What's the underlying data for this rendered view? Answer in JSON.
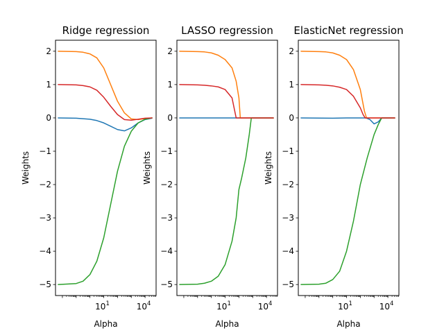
{
  "figure": {
    "background": "#ffffff"
  },
  "chart_data": [
    {
      "type": "line",
      "title": "Ridge regression",
      "xlabel": "Alpha",
      "ylabel": "Weights",
      "xscale": "log",
      "xlim_log10": [
        -2.5,
        4.8
      ],
      "ylim": [
        -5.33,
        2.33
      ],
      "xticks": [
        {
          "base": "10",
          "exp": "1",
          "value": 10
        },
        {
          "base": "10",
          "exp": "4",
          "value": 10000
        }
      ],
      "yticks": [
        -5,
        -4,
        -3,
        -2,
        -1,
        0,
        1,
        2
      ],
      "grid": false,
      "legend": "none",
      "series": [
        {
          "color": "#1f77b4",
          "log10_alpha": [
            -2.3,
            -1,
            0,
            0.5,
            1,
            1.5,
            2,
            2.5,
            3,
            3.5,
            4,
            4.5
          ],
          "values": [
            0,
            -0.01,
            -0.04,
            -0.08,
            -0.15,
            -0.25,
            -0.35,
            -0.39,
            -0.3,
            -0.15,
            -0.05,
            -0.01
          ]
        },
        {
          "color": "#ff7f0e",
          "log10_alpha": [
            -2.3,
            -1,
            -0.5,
            0,
            0.5,
            1,
            1.5,
            2,
            2.5,
            3,
            3.5,
            4,
            4.5
          ],
          "values": [
            2,
            1.99,
            1.97,
            1.92,
            1.8,
            1.5,
            1.0,
            0.5,
            0.15,
            -0.03,
            -0.05,
            -0.02,
            0
          ]
        },
        {
          "color": "#2ca02c",
          "log10_alpha": [
            -2.3,
            -1,
            -0.5,
            0,
            0.5,
            1,
            1.5,
            2,
            2.5,
            3,
            3.5,
            4,
            4.5
          ],
          "values": [
            -5,
            -4.97,
            -4.9,
            -4.7,
            -4.3,
            -3.6,
            -2.6,
            -1.6,
            -0.85,
            -0.4,
            -0.15,
            -0.04,
            0
          ]
        },
        {
          "color": "#d62728",
          "log10_alpha": [
            -2.3,
            -1,
            -0.5,
            0,
            0.5,
            1,
            1.5,
            2,
            2.5,
            3,
            3.5,
            4,
            4.5
          ],
          "values": [
            1,
            0.99,
            0.97,
            0.93,
            0.83,
            0.62,
            0.35,
            0.1,
            -0.05,
            -0.07,
            -0.04,
            -0.01,
            0
          ]
        }
      ]
    },
    {
      "type": "line",
      "title": "LASSO regression",
      "xlabel": "Alpha",
      "ylabel": "Weights",
      "xscale": "log",
      "xlim_log10": [
        -2.5,
        4.8
      ],
      "ylim": [
        -5.33,
        2.33
      ],
      "xticks": [
        {
          "base": "10",
          "exp": "1",
          "value": 10
        },
        {
          "base": "10",
          "exp": "4",
          "value": 10000
        }
      ],
      "yticks": [
        -5,
        -4,
        -3,
        -2,
        -1,
        0,
        1,
        2
      ],
      "grid": false,
      "legend": "none",
      "series": [
        {
          "color": "#1f77b4",
          "log10_alpha": [
            -2.3,
            1,
            2.2,
            4.5
          ],
          "values": [
            0,
            0,
            0,
            0
          ]
        },
        {
          "color": "#ff7f0e",
          "log10_alpha": [
            -2.3,
            -1,
            -0.5,
            0,
            0.5,
            1,
            1.5,
            1.8,
            2.0,
            2.1,
            4.5
          ],
          "values": [
            2,
            1.99,
            1.98,
            1.95,
            1.88,
            1.75,
            1.5,
            1.1,
            0.6,
            0,
            0
          ]
        },
        {
          "color": "#2ca02c",
          "log10_alpha": [
            -2.3,
            -1,
            -0.5,
            0,
            0.5,
            1,
            1.5,
            1.8,
            2.0,
            2.2,
            2.5,
            2.75,
            2.9,
            4.5
          ],
          "values": [
            -5,
            -4.99,
            -4.96,
            -4.9,
            -4.75,
            -4.4,
            -3.7,
            -3.0,
            -2.15,
            -1.8,
            -1.2,
            -0.5,
            0,
            0
          ]
        },
        {
          "color": "#d62728",
          "log10_alpha": [
            -2.3,
            -1,
            -0.5,
            0,
            0.5,
            1,
            1.5,
            1.8,
            4.5
          ],
          "values": [
            1,
            0.99,
            0.98,
            0.96,
            0.93,
            0.85,
            0.6,
            0,
            0
          ]
        }
      ]
    },
    {
      "type": "line",
      "title": "ElasticNet regression",
      "xlabel": "Alpha",
      "ylabel": "Weights",
      "xscale": "log",
      "xlim_log10": [
        -2.5,
        4.8
      ],
      "ylim": [
        -5.33,
        2.33
      ],
      "xticks": [
        {
          "base": "10",
          "exp": "1",
          "value": 10
        },
        {
          "base": "10",
          "exp": "4",
          "value": 10000
        }
      ],
      "yticks": [
        -5,
        -4,
        -3,
        -2,
        -1,
        0,
        1,
        2
      ],
      "grid": false,
      "legend": "none",
      "series": [
        {
          "color": "#1f77b4",
          "log10_alpha": [
            -2.3,
            0,
            1,
            2,
            2.4,
            2.7,
            3.0,
            3.3,
            3.55,
            4.5
          ],
          "values": [
            0,
            -0.01,
            0,
            0,
            0,
            -0.05,
            -0.18,
            -0.12,
            0,
            0
          ]
        },
        {
          "color": "#ff7f0e",
          "log10_alpha": [
            -2.3,
            -1,
            -0.5,
            0,
            0.5,
            1,
            1.5,
            2.0,
            2.3,
            2.45,
            4.5
          ],
          "values": [
            2,
            1.99,
            1.98,
            1.95,
            1.88,
            1.75,
            1.45,
            0.85,
            0.2,
            0,
            0
          ]
        },
        {
          "color": "#2ca02c",
          "log10_alpha": [
            -2.3,
            -1,
            -0.5,
            0,
            0.5,
            1,
            1.5,
            2,
            2.5,
            3.0,
            3.3,
            3.55,
            4.5
          ],
          "values": [
            -5,
            -4.99,
            -4.96,
            -4.85,
            -4.6,
            -4.0,
            -3.1,
            -2.0,
            -1.2,
            -0.5,
            -0.2,
            0,
            0
          ]
        },
        {
          "color": "#d62728",
          "log10_alpha": [
            -2.3,
            -1,
            -0.5,
            0,
            0.5,
            1,
            1.5,
            2.0,
            2.2,
            2.35,
            4.5
          ],
          "values": [
            1,
            0.99,
            0.98,
            0.96,
            0.92,
            0.85,
            0.65,
            0.3,
            0.1,
            0,
            0
          ]
        }
      ]
    }
  ]
}
